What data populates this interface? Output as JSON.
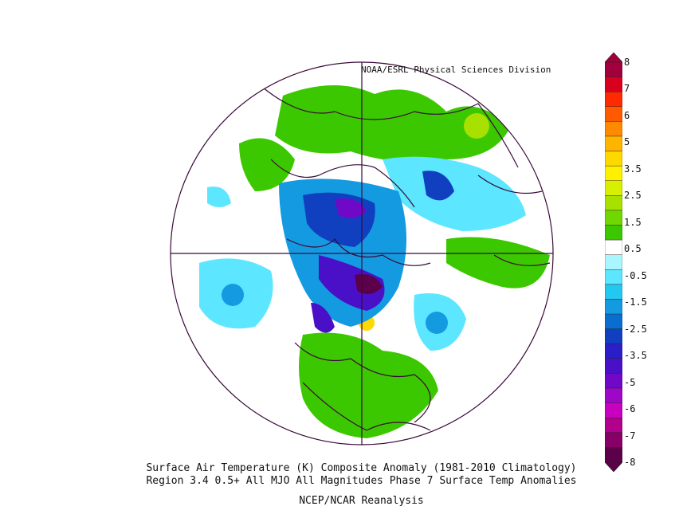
{
  "credit": "NOAA/ESRL Physical Sciences Division",
  "caption": {
    "line1": "Surface Air Temperature (K) Composite Anomaly (1981-2010 Climatology)",
    "line2": "Region 3.4 0.5+ All MJO All Magnitudes Phase 7 Surface Temp  Anomalies",
    "line3": "NCEP/NCAR Reanalysis"
  },
  "legend": {
    "ticks": [
      "8",
      "7",
      "6",
      "5",
      "3.5",
      "2.5",
      "1.5",
      "0.5",
      "-0.5",
      "-1.5",
      "-2.5",
      "-3.5",
      "-5",
      "-6",
      "-7",
      "-8"
    ],
    "colors": [
      "#a0003c",
      "#d8001e",
      "#ff2a00",
      "#ff5a00",
      "#ff8a00",
      "#ffb400",
      "#ffd800",
      "#fff000",
      "#d6f000",
      "#a8e000",
      "#70d800",
      "#3cc800",
      "#ffffff",
      "#aaf6ff",
      "#5ce6ff",
      "#22c8f0",
      "#149ae0",
      "#0a6ed0",
      "#1040c0",
      "#2a1ec8",
      "#4a10c8",
      "#7008c8",
      "#9e06c8",
      "#c800c0",
      "#b0008c",
      "#860068",
      "#5c004a"
    ]
  },
  "colors": {
    "outline": "#3a0a3a",
    "grid": "#3a0a3a"
  }
}
